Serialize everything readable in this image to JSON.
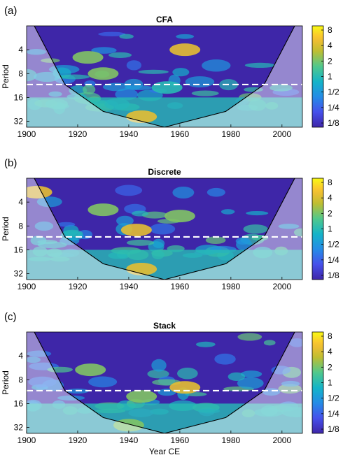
{
  "chart_data": [
    {
      "type": "heatmap",
      "panel_label": "(a)",
      "title": "CFA",
      "xlabel": "",
      "ylabel": "Period",
      "xlim": [
        1900,
        2008
      ],
      "x_ticks": [
        "1900",
        "1920",
        "1940",
        "1960",
        "1980",
        "2000"
      ],
      "y_ticks": [
        "4",
        "8",
        "16",
        "32"
      ],
      "y_scale": "log2",
      "ylim": [
        2,
        38
      ],
      "colorbar_ticks": [
        "8",
        "4",
        "2",
        "1",
        "1/2",
        "1/4",
        "1/8"
      ],
      "significance_period": 11,
      "cone_of_influence": {
        "x": [
          1903,
          1915,
          1930,
          1954,
          1978,
          1993,
          2005
        ],
        "period": [
          2,
          11,
          24,
          38,
          24,
          11,
          2
        ]
      },
      "features": [
        {
          "x": 1924,
          "period": 5,
          "power": 2
        },
        {
          "x": 1962,
          "period": 4,
          "power": 4
        },
        {
          "x": 1930,
          "period": 8,
          "power": 2
        },
        {
          "x": 1955,
          "period": 12,
          "power": 1
        },
        {
          "x": 1945,
          "period": 28,
          "power": 4
        }
      ]
    },
    {
      "type": "heatmap",
      "panel_label": "(b)",
      "title": "Discrete",
      "xlabel": "",
      "ylabel": "Period",
      "xlim": [
        1900,
        2008
      ],
      "x_ticks": [
        "1900",
        "1920",
        "1940",
        "1960",
        "1980",
        "2000"
      ],
      "y_ticks": [
        "4",
        "8",
        "16",
        "32"
      ],
      "y_scale": "log2",
      "ylim": [
        2,
        38
      ],
      "colorbar_ticks": [
        "8",
        "4",
        "2",
        "1",
        "1/2",
        "1/4",
        "1/8"
      ],
      "significance_period": 11,
      "cone_of_influence": {
        "x": [
          1903,
          1915,
          1930,
          1954,
          1978,
          1993,
          2005
        ],
        "period": [
          2,
          11,
          24,
          38,
          24,
          11,
          2
        ]
      },
      "features": [
        {
          "x": 1904,
          "period": 3,
          "power": 4
        },
        {
          "x": 1943,
          "period": 9,
          "power": 4
        },
        {
          "x": 1930,
          "period": 5,
          "power": 2
        },
        {
          "x": 1960,
          "period": 6,
          "power": 2
        },
        {
          "x": 1945,
          "period": 28,
          "power": 4
        }
      ]
    },
    {
      "type": "heatmap",
      "panel_label": "(c)",
      "title": "Stack",
      "xlabel": "Year CE",
      "ylabel": "Period",
      "xlim": [
        1900,
        2008
      ],
      "x_ticks": [
        "1900",
        "1920",
        "1940",
        "1960",
        "1980",
        "2000"
      ],
      "y_ticks": [
        "4",
        "8",
        "16",
        "32"
      ],
      "y_scale": "log2",
      "ylim": [
        2,
        38
      ],
      "colorbar_ticks": [
        "8",
        "4",
        "2",
        "1",
        "1/2",
        "1/4",
        "1/8"
      ],
      "significance_period": 11,
      "cone_of_influence": {
        "x": [
          1903,
          1915,
          1930,
          1954,
          1978,
          1993,
          2005
        ],
        "period": [
          2,
          11,
          24,
          38,
          24,
          11,
          2
        ]
      },
      "features": [
        {
          "x": 1962,
          "period": 10,
          "power": 4
        },
        {
          "x": 1925,
          "period": 6,
          "power": 2
        },
        {
          "x": 1945,
          "period": 13,
          "power": 2
        },
        {
          "x": 1940,
          "period": 30,
          "power": 2
        }
      ]
    }
  ]
}
